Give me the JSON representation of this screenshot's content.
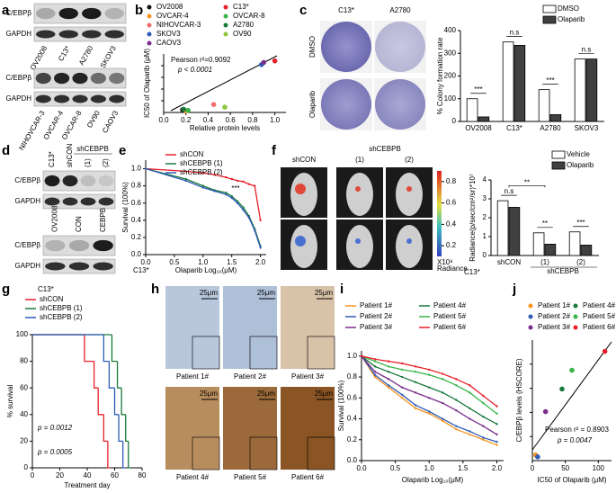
{
  "panels": {
    "a": {
      "label": "a",
      "blots": [
        {
          "rows": [
            "C/EBPβ",
            "GAPDH"
          ],
          "lanes": [
            "OV2008",
            "C13*",
            "A2780",
            "SKOV3"
          ]
        },
        {
          "rows": [
            "C/EBPβ",
            "GAPDH"
          ],
          "lanes": [
            "NIHOVCAR-3",
            "OVCAR-4",
            "OVCAR-8",
            "OV90",
            "CAOV3"
          ]
        }
      ]
    },
    "b": {
      "label": "b",
      "type": "scatter",
      "xlabel": "Relative protein levels",
      "ylabel": "IC50 of Olaparib (μM)",
      "annotations": [
        "Pearson r²=0.9092",
        "p < 0.0001"
      ],
      "xlim": [
        0,
        1.1
      ],
      "xticks": [
        {
          "value": 0,
          "label": "0.0"
        },
        0.2,
        0.4,
        0.6,
        0.8,
        {
          "value": 1,
          "label": "1.0"
        }
      ],
      "ylim": [
        0,
        110
      ],
      "points": [
        {
          "name": "OV2008",
          "color": "#111111",
          "x": 0.17,
          "y": 5
        },
        {
          "name": "C13*",
          "color": "#e8202a",
          "x": 1.0,
          "y": 97
        },
        {
          "name": "OVCAR-4",
          "color": "#f7931e",
          "x": 0.2,
          "y": 3
        },
        {
          "name": "OVCAR-8",
          "color": "#39b54a",
          "x": 0.22,
          "y": 4
        },
        {
          "name": "NIHOVCAR-3",
          "color": "#f26c6c",
          "x": 0.45,
          "y": 15
        },
        {
          "name": "A2780",
          "color": "#1a7a3c",
          "x": 0.18,
          "y": 6
        },
        {
          "name": "SKOV3",
          "color": "#2e5cb8",
          "x": 0.88,
          "y": 90
        },
        {
          "name": "OV90",
          "color": "#8dc63f",
          "x": 0.55,
          "y": 10
        },
        {
          "name": "CAOV3",
          "color": "#7b2d8e",
          "x": 0.9,
          "y": 94
        }
      ]
    },
    "c": {
      "label": "c",
      "cols": [
        "C13*",
        "A2780"
      ],
      "rows": [
        "DMSO",
        "Olaparib"
      ],
      "type": "bar",
      "ylabel": "% Colony formation rate",
      "categories": [
        "OV2008",
        "C13*",
        "A2780",
        "SKOV3"
      ],
      "series": [
        {
          "name": "DMSO",
          "color": "#ffffff",
          "values": [
            100,
            350,
            140,
            275
          ]
        },
        {
          "name": "Olaparib",
          "color": "#404040",
          "values": [
            20,
            335,
            30,
            275
          ]
        }
      ],
      "annotations": [
        "***",
        "n.s",
        "***",
        "n.s"
      ],
      "ylim": [
        0,
        400
      ],
      "yticks": [
        0,
        100,
        200,
        300,
        400
      ]
    },
    "d": {
      "label": "d",
      "blots": [
        {
          "rows": [
            "C/EBPβ",
            "GAPDH"
          ],
          "lanes": [
            "C13*",
            "shCON",
            "(1)",
            "(2)"
          ],
          "group": "shCEBPB"
        },
        {
          "rows": [
            "C/EBPβ",
            "GAPDH"
          ],
          "lanes": [
            "OV2008",
            "CON",
            "CEBPB"
          ]
        }
      ]
    },
    "e": {
      "label": "e",
      "type": "line",
      "cell": "C13*",
      "xlabel": "Olaparib Log₁₀(μM)",
      "ylabel": "Survival (100%)",
      "annotation": "***",
      "x": [
        0,
        0.7,
        1.0,
        1.2,
        1.4,
        1.5,
        1.6,
        1.7,
        1.8,
        1.9,
        2.0
      ],
      "series": [
        {
          "name": "shCON",
          "color": "#e8202a",
          "values": [
            1,
            0.97,
            0.95,
            0.93,
            0.9,
            0.88,
            0.86,
            0.85,
            0.82,
            0.8,
            0.4
          ]
        },
        {
          "name": "shCEBPB (1)",
          "color": "#1a7a3c",
          "values": [
            1,
            0.88,
            0.8,
            0.75,
            0.72,
            0.68,
            0.62,
            0.55,
            0.45,
            0.3,
            0.1
          ]
        },
        {
          "name": "shCEBPB (2)",
          "color": "#2e5cb8",
          "values": [
            1,
            0.86,
            0.78,
            0.74,
            0.7,
            0.66,
            0.6,
            0.52,
            0.43,
            0.28,
            0.08
          ]
        }
      ],
      "xlim": [
        0,
        2.1
      ],
      "xticks": [
        {
          "value": 0,
          "label": "0.0"
        },
        0.5,
        {
          "value": 1,
          "label": "1.0"
        },
        1.5,
        {
          "value": 2,
          "label": "2.0"
        }
      ],
      "ylim": [
        0,
        1.1
      ],
      "yticks": [
        {
          "value": 0,
          "label": "0.0"
        },
        0.2,
        0.4,
        0.6,
        0.8,
        {
          "value": 1,
          "label": "1.0"
        }
      ]
    },
    "f": {
      "label": "f",
      "rows": [
        "Vehicle",
        "Olaparib"
      ],
      "cols": [
        "shCON",
        "(1)",
        "(2)"
      ],
      "group": "shCEBPB",
      "colorbar": {
        "ticks": [
          0.8,
          0.6,
          0.4,
          0.2
        ],
        "unit": "X10⁸",
        "title": "Radiance"
      },
      "type": "bar",
      "ylabel": "Radiance(p/sec/cm²/sr)*10⁷",
      "cell": "C13*",
      "group_label": "shCEBPB",
      "categories": [
        "shCON",
        "(1)",
        "(2)"
      ],
      "series": [
        {
          "name": "Vehicle",
          "color": "#ffffff",
          "values": [
            2.9,
            1.2,
            1.25
          ]
        },
        {
          "name": "Olaparib",
          "color": "#404040",
          "values": [
            2.55,
            0.6,
            0.55
          ]
        }
      ],
      "annotations": [
        "n.s",
        "**",
        "***"
      ],
      "bracket": "**",
      "ylim": [
        0,
        4
      ],
      "yticks": [
        0,
        1,
        2,
        3,
        4
      ]
    },
    "g": {
      "label": "g",
      "type": "step",
      "cell": "C13*",
      "ylabel": "% survival",
      "xlabel": "Treatment day",
      "annotations": [
        "p = 0.0012",
        "p = 0.0005"
      ],
      "series": [
        {
          "name": "shCON",
          "color": "#e8202a",
          "x": [
            0,
            38,
            45,
            48,
            52,
            55
          ],
          "values": [
            100,
            80,
            60,
            40,
            20,
            0
          ]
        },
        {
          "name": "shCEBPB (1)",
          "color": "#1a7a3c",
          "x": [
            0,
            58,
            62,
            65,
            68,
            70
          ],
          "values": [
            100,
            80,
            60,
            40,
            20,
            0
          ]
        },
        {
          "name": "shCEBPB (2)",
          "color": "#2e5cb8",
          "x": [
            0,
            52,
            56,
            60,
            63,
            66
          ],
          "values": [
            100,
            80,
            60,
            40,
            20,
            0
          ]
        }
      ],
      "xlim": [
        0,
        80
      ],
      "xticks": [
        0,
        20,
        40,
        60,
        80
      ],
      "ylim": [
        0,
        100
      ],
      "yticks": [
        0,
        20,
        40,
        60,
        80,
        100
      ]
    },
    "h": {
      "label": "h",
      "images": [
        {
          "label": "Patient 1#",
          "scale": "25μm"
        },
        {
          "label": "Patient 2#",
          "scale": "25μm"
        },
        {
          "label": "Patient 3#",
          "scale": "25μm"
        },
        {
          "label": "Patient 4#",
          "scale": "25μm"
        },
        {
          "label": "Patient 5#",
          "scale": "25μm"
        },
        {
          "label": "Patient 6#",
          "scale": "25μm"
        }
      ]
    },
    "i": {
      "label": "i",
      "type": "line",
      "xlabel": "Olaparib Log₁₀(μM)",
      "ylabel": "Survival (100%)",
      "x": [
        0,
        0.2,
        0.4,
        0.6,
        0.8,
        1.0,
        1.2,
        1.4,
        1.6,
        1.8,
        2.0
      ],
      "series": [
        {
          "name": "Patient 1#",
          "color": "#f7931e",
          "values": [
            1,
            0.8,
            0.7,
            0.6,
            0.5,
            0.45,
            0.38,
            0.3,
            0.25,
            0.2,
            0.15
          ]
        },
        {
          "name": "Patient 4#",
          "color": "#1a7a3c",
          "values": [
            1,
            0.9,
            0.85,
            0.8,
            0.75,
            0.7,
            0.65,
            0.58,
            0.5,
            0.42,
            0.35
          ]
        },
        {
          "name": "Patient 2#",
          "color": "#2e5cb8",
          "values": [
            1,
            0.82,
            0.72,
            0.63,
            0.53,
            0.47,
            0.4,
            0.33,
            0.28,
            0.22,
            0.18
          ]
        },
        {
          "name": "Patient 5#",
          "color": "#39b54a",
          "values": [
            1,
            0.95,
            0.9,
            0.87,
            0.85,
            0.82,
            0.78,
            0.72,
            0.65,
            0.55,
            0.45
          ]
        },
        {
          "name": "Patient 3#",
          "color": "#7b2d8e",
          "values": [
            1,
            0.85,
            0.78,
            0.7,
            0.65,
            0.6,
            0.55,
            0.48,
            0.4,
            0.33,
            0.25
          ]
        },
        {
          "name": "Patient 6#",
          "color": "#e8202a",
          "values": [
            1,
            0.97,
            0.95,
            0.93,
            0.9,
            0.87,
            0.83,
            0.78,
            0.72,
            0.62,
            0.52
          ]
        }
      ],
      "xlim": [
        0,
        2.1
      ],
      "xticks": [
        {
          "value": 0,
          "label": "0.0"
        },
        0.5,
        {
          "value": 1,
          "label": "1.0"
        },
        1.5,
        {
          "value": 2,
          "label": "2.0"
        }
      ],
      "ylim": [
        0,
        1.05
      ],
      "yticks": [
        {
          "value": 0,
          "label": "0.0"
        },
        0.2,
        0.4,
        0.6,
        0.8,
        {
          "value": 1,
          "label": "1.0"
        }
      ]
    },
    "j": {
      "label": "j",
      "type": "scatter",
      "xlabel": "IC50 of Olaparib (μM)",
      "ylabel": "C/EBPβ levels (HSCORE)",
      "annotations": [
        "Pearson r² = 0.8903",
        "p = 0.0047"
      ],
      "xlim": [
        0,
        120
      ],
      "xticks": [
        0,
        50,
        100
      ],
      "ylim": [
        0,
        3.2
      ],
      "points": [
        {
          "name": "Patient 1#",
          "color": "#f7931e",
          "x": 5,
          "y": 0.15
        },
        {
          "name": "Patient 4#",
          "color": "#1a7a3c",
          "x": 45,
          "y": 1.9
        },
        {
          "name": "Patient 2#",
          "color": "#2e5cb8",
          "x": 8,
          "y": 0.1
        },
        {
          "name": "Patient 5#",
          "color": "#39b54a",
          "x": 60,
          "y": 2.4
        },
        {
          "name": "Patient 3#",
          "color": "#7b2d8e",
          "x": 20,
          "y": 1.3
        },
        {
          "name": "Patient 6#",
          "color": "#e8202a",
          "x": 110,
          "y": 2.9
        }
      ]
    }
  }
}
